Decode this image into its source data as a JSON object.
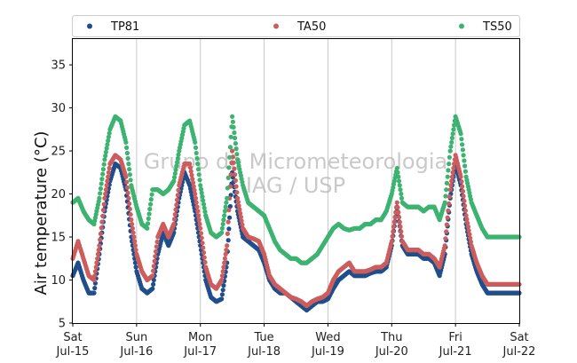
{
  "chart_data": {
    "type": "scatter",
    "title": "",
    "xlabel": "",
    "ylabel": "Air temperature (°C)",
    "ylim": [
      5,
      38
    ],
    "yticks": [
      5,
      10,
      15,
      20,
      25,
      30,
      35
    ],
    "xlim": [
      "2017-07-15 00:00",
      "2017-07-22 00:00"
    ],
    "xticks": [
      {
        "day": "Sat",
        "date": "Jul-15"
      },
      {
        "day": "Sun",
        "date": "Jul-16"
      },
      {
        "day": "Mon",
        "date": "Jul-17"
      },
      {
        "day": "Tue",
        "date": "Jul-18"
      },
      {
        "day": "Wed",
        "date": "Jul-19"
      },
      {
        "day": "Thu",
        "date": "Jul-20"
      },
      {
        "day": "Fri",
        "date": "Jul-21"
      },
      {
        "day": "Sat",
        "date": "Jul-22"
      }
    ],
    "grid": "vertical",
    "legend_position": "top",
    "watermark": [
      "Grupo de Micrometeorologia",
      "IAG / USP"
    ],
    "series": [
      {
        "name": "TP81",
        "color": "#1f4e8c",
        "x": [
          "2017-07-15 00:00",
          "2017-07-15 02:00",
          "2017-07-15 04:00",
          "2017-07-15 06:00",
          "2017-07-15 08:00",
          "2017-07-15 10:00",
          "2017-07-15 12:00",
          "2017-07-15 14:00",
          "2017-07-15 16:00",
          "2017-07-15 18:00",
          "2017-07-15 20:00",
          "2017-07-15 22:00",
          "2017-07-16 00:00",
          "2017-07-16 02:00",
          "2017-07-16 04:00",
          "2017-07-16 06:00",
          "2017-07-16 08:00",
          "2017-07-16 10:00",
          "2017-07-16 12:00",
          "2017-07-16 14:00",
          "2017-07-16 16:00",
          "2017-07-16 18:00",
          "2017-07-16 20:00",
          "2017-07-16 22:00",
          "2017-07-17 00:00",
          "2017-07-17 02:00",
          "2017-07-17 04:00",
          "2017-07-17 06:00",
          "2017-07-17 08:00",
          "2017-07-17 10:00",
          "2017-07-17 12:00",
          "2017-07-17 14:00",
          "2017-07-17 16:00",
          "2017-07-17 18:00",
          "2017-07-17 20:00",
          "2017-07-17 22:00",
          "2017-07-18 00:00",
          "2017-07-18 02:00",
          "2017-07-18 04:00",
          "2017-07-18 06:00",
          "2017-07-18 08:00",
          "2017-07-18 10:00",
          "2017-07-18 12:00",
          "2017-07-18 14:00",
          "2017-07-18 16:00",
          "2017-07-18 18:00",
          "2017-07-18 20:00",
          "2017-07-18 22:00",
          "2017-07-19 00:00",
          "2017-07-19 02:00",
          "2017-07-19 04:00",
          "2017-07-19 06:00",
          "2017-07-19 08:00",
          "2017-07-19 10:00",
          "2017-07-19 12:00",
          "2017-07-19 14:00",
          "2017-07-19 16:00",
          "2017-07-19 18:00",
          "2017-07-19 20:00",
          "2017-07-19 22:00",
          "2017-07-20 00:00",
          "2017-07-20 02:00",
          "2017-07-20 04:00",
          "2017-07-20 06:00",
          "2017-07-20 08:00",
          "2017-07-20 10:00",
          "2017-07-20 12:00",
          "2017-07-20 14:00",
          "2017-07-20 16:00",
          "2017-07-20 18:00",
          "2017-07-20 20:00",
          "2017-07-20 22:00",
          "2017-07-21 00:00",
          "2017-07-21 02:00",
          "2017-07-21 04:00",
          "2017-07-21 06:00",
          "2017-07-21 08:00",
          "2017-07-21 10:00",
          "2017-07-21 12:00",
          "2017-07-21 14:00",
          "2017-07-21 16:00",
          "2017-07-21 18:00",
          "2017-07-21 20:00",
          "2017-07-21 22:00",
          "2017-07-22 00:00"
        ],
        "y": [
          10.5,
          12.0,
          10.0,
          8.5,
          8.5,
          13.0,
          18.0,
          21.5,
          23.5,
          23.0,
          20.5,
          15.0,
          11.0,
          9.0,
          8.5,
          9.0,
          13.0,
          15.5,
          14.0,
          15.5,
          19.5,
          22.5,
          21.0,
          18.0,
          14.0,
          10.0,
          8.0,
          7.5,
          7.8,
          12.0,
          22.5,
          18.0,
          15.0,
          14.5,
          14.0,
          13.5,
          12.0,
          10.0,
          9.0,
          8.5,
          8.5,
          8.0,
          7.5,
          7.0,
          6.5,
          7.0,
          7.5,
          7.5,
          7.8,
          9.0,
          10.0,
          10.5,
          11.0,
          10.5,
          10.5,
          10.5,
          10.8,
          11.0,
          11.0,
          11.5,
          14.0,
          18.5,
          14.0,
          13.0,
          13.0,
          13.0,
          12.5,
          12.5,
          12.0,
          10.5,
          13.0,
          19.5,
          23.5,
          21.0,
          16.5,
          13.0,
          11.0,
          9.5,
          8.5,
          8.5,
          8.5,
          8.5,
          8.5,
          8.5,
          8.5
        ]
      },
      {
        "name": "TA50",
        "color": "#cd5c5c",
        "x": [
          "2017-07-15 00:00",
          "2017-07-15 02:00",
          "2017-07-15 04:00",
          "2017-07-15 06:00",
          "2017-07-15 08:00",
          "2017-07-15 10:00",
          "2017-07-15 12:00",
          "2017-07-15 14:00",
          "2017-07-15 16:00",
          "2017-07-15 18:00",
          "2017-07-15 20:00",
          "2017-07-15 22:00",
          "2017-07-16 00:00",
          "2017-07-16 02:00",
          "2017-07-16 04:00",
          "2017-07-16 06:00",
          "2017-07-16 08:00",
          "2017-07-16 10:00",
          "2017-07-16 12:00",
          "2017-07-16 14:00",
          "2017-07-16 16:00",
          "2017-07-16 18:00",
          "2017-07-16 20:00",
          "2017-07-16 22:00",
          "2017-07-17 00:00",
          "2017-07-17 02:00",
          "2017-07-17 04:00",
          "2017-07-17 06:00",
          "2017-07-17 08:00",
          "2017-07-17 10:00",
          "2017-07-17 12:00",
          "2017-07-17 14:00",
          "2017-07-17 16:00",
          "2017-07-17 18:00",
          "2017-07-17 20:00",
          "2017-07-17 22:00",
          "2017-07-18 00:00",
          "2017-07-18 02:00",
          "2017-07-18 04:00",
          "2017-07-18 06:00",
          "2017-07-18 08:00",
          "2017-07-18 10:00",
          "2017-07-18 12:00",
          "2017-07-18 14:00",
          "2017-07-18 16:00",
          "2017-07-18 18:00",
          "2017-07-18 20:00",
          "2017-07-18 22:00",
          "2017-07-19 00:00",
          "2017-07-19 02:00",
          "2017-07-19 04:00",
          "2017-07-19 06:00",
          "2017-07-19 08:00",
          "2017-07-19 10:00",
          "2017-07-19 12:00",
          "2017-07-19 14:00",
          "2017-07-19 16:00",
          "2017-07-19 18:00",
          "2017-07-19 20:00",
          "2017-07-19 22:00",
          "2017-07-20 00:00",
          "2017-07-20 02:00",
          "2017-07-20 04:00",
          "2017-07-20 06:00",
          "2017-07-20 08:00",
          "2017-07-20 10:00",
          "2017-07-20 12:00",
          "2017-07-20 14:00",
          "2017-07-20 16:00",
          "2017-07-20 18:00",
          "2017-07-20 20:00",
          "2017-07-20 22:00",
          "2017-07-21 00:00",
          "2017-07-21 02:00",
          "2017-07-21 04:00",
          "2017-07-21 06:00",
          "2017-07-21 08:00",
          "2017-07-21 10:00",
          "2017-07-21 12:00",
          "2017-07-21 14:00",
          "2017-07-21 16:00",
          "2017-07-21 18:00",
          "2017-07-21 20:00",
          "2017-07-21 22:00",
          "2017-07-22 00:00"
        ],
        "y": [
          12.5,
          14.5,
          12.5,
          10.5,
          10.0,
          14.0,
          19.5,
          23.5,
          24.5,
          24.0,
          22.0,
          17.0,
          13.0,
          11.0,
          10.0,
          10.5,
          15.0,
          16.5,
          15.0,
          16.5,
          21.0,
          23.5,
          23.5,
          20.0,
          16.0,
          11.5,
          9.5,
          9.0,
          10.0,
          14.0,
          25.0,
          19.5,
          16.0,
          15.0,
          14.8,
          14.5,
          13.0,
          10.5,
          9.5,
          9.0,
          8.5,
          8.0,
          7.8,
          7.5,
          7.0,
          7.5,
          7.8,
          8.0,
          8.5,
          10.0,
          11.0,
          11.5,
          12.0,
          11.0,
          11.0,
          11.0,
          11.2,
          11.5,
          11.5,
          12.0,
          14.5,
          19.0,
          14.5,
          13.5,
          13.5,
          13.5,
          13.0,
          13.0,
          12.5,
          11.5,
          14.0,
          20.5,
          24.5,
          22.0,
          17.5,
          14.0,
          12.0,
          10.5,
          9.5,
          9.5,
          9.5,
          9.5,
          9.5,
          9.5,
          9.5
        ]
      },
      {
        "name": "TS50",
        "color": "#3cb371",
        "x": [
          "2017-07-15 00:00",
          "2017-07-15 02:00",
          "2017-07-15 04:00",
          "2017-07-15 06:00",
          "2017-07-15 08:00",
          "2017-07-15 10:00",
          "2017-07-15 12:00",
          "2017-07-15 14:00",
          "2017-07-15 16:00",
          "2017-07-15 18:00",
          "2017-07-15 20:00",
          "2017-07-15 22:00",
          "2017-07-16 00:00",
          "2017-07-16 02:00",
          "2017-07-16 04:00",
          "2017-07-16 06:00",
          "2017-07-16 08:00",
          "2017-07-16 10:00",
          "2017-07-16 12:00",
          "2017-07-16 14:00",
          "2017-07-16 16:00",
          "2017-07-16 18:00",
          "2017-07-16 20:00",
          "2017-07-16 22:00",
          "2017-07-17 00:00",
          "2017-07-17 02:00",
          "2017-07-17 04:00",
          "2017-07-17 06:00",
          "2017-07-17 08:00",
          "2017-07-17 10:00",
          "2017-07-17 12:00",
          "2017-07-17 14:00",
          "2017-07-17 16:00",
          "2017-07-17 18:00",
          "2017-07-17 20:00",
          "2017-07-17 22:00",
          "2017-07-18 00:00",
          "2017-07-18 02:00",
          "2017-07-18 04:00",
          "2017-07-18 06:00",
          "2017-07-18 08:00",
          "2017-07-18 10:00",
          "2017-07-18 12:00",
          "2017-07-18 14:00",
          "2017-07-18 16:00",
          "2017-07-18 18:00",
          "2017-07-18 20:00",
          "2017-07-18 22:00",
          "2017-07-19 00:00",
          "2017-07-19 02:00",
          "2017-07-19 04:00",
          "2017-07-19 06:00",
          "2017-07-19 08:00",
          "2017-07-19 10:00",
          "2017-07-19 12:00",
          "2017-07-19 14:00",
          "2017-07-19 16:00",
          "2017-07-19 18:00",
          "2017-07-19 20:00",
          "2017-07-19 22:00",
          "2017-07-20 00:00",
          "2017-07-20 02:00",
          "2017-07-20 04:00",
          "2017-07-20 06:00",
          "2017-07-20 08:00",
          "2017-07-20 10:00",
          "2017-07-20 12:00",
          "2017-07-20 14:00",
          "2017-07-20 16:00",
          "2017-07-20 18:00",
          "2017-07-20 20:00",
          "2017-07-20 22:00",
          "2017-07-21 00:00",
          "2017-07-21 02:00",
          "2017-07-21 04:00",
          "2017-07-21 06:00",
          "2017-07-21 08:00",
          "2017-07-21 10:00",
          "2017-07-21 12:00",
          "2017-07-21 14:00",
          "2017-07-21 16:00",
          "2017-07-21 18:00",
          "2017-07-21 20:00",
          "2017-07-21 22:00",
          "2017-07-22 00:00"
        ],
        "y": [
          19.0,
          19.5,
          18.0,
          17.0,
          16.5,
          19.5,
          24.0,
          27.5,
          29.0,
          28.5,
          26.0,
          21.0,
          18.5,
          16.5,
          16.0,
          20.5,
          20.5,
          20.0,
          20.5,
          21.5,
          25.0,
          28.0,
          28.5,
          26.0,
          21.0,
          17.5,
          15.5,
          15.0,
          15.5,
          19.5,
          29.0,
          24.0,
          21.0,
          19.0,
          18.5,
          18.0,
          17.5,
          16.0,
          14.5,
          13.5,
          13.0,
          12.5,
          12.5,
          12.0,
          12.0,
          12.5,
          13.0,
          14.0,
          15.0,
          16.0,
          16.5,
          16.0,
          15.8,
          16.0,
          16.0,
          16.5,
          16.5,
          17.0,
          17.0,
          18.0,
          20.0,
          23.0,
          19.0,
          18.5,
          18.5,
          18.5,
          18.0,
          18.5,
          18.5,
          17.0,
          19.0,
          25.0,
          29.0,
          27.0,
          22.0,
          19.0,
          17.5,
          16.0,
          15.0,
          15.0,
          15.0,
          15.0,
          15.0,
          15.0,
          15.0
        ]
      }
    ]
  }
}
